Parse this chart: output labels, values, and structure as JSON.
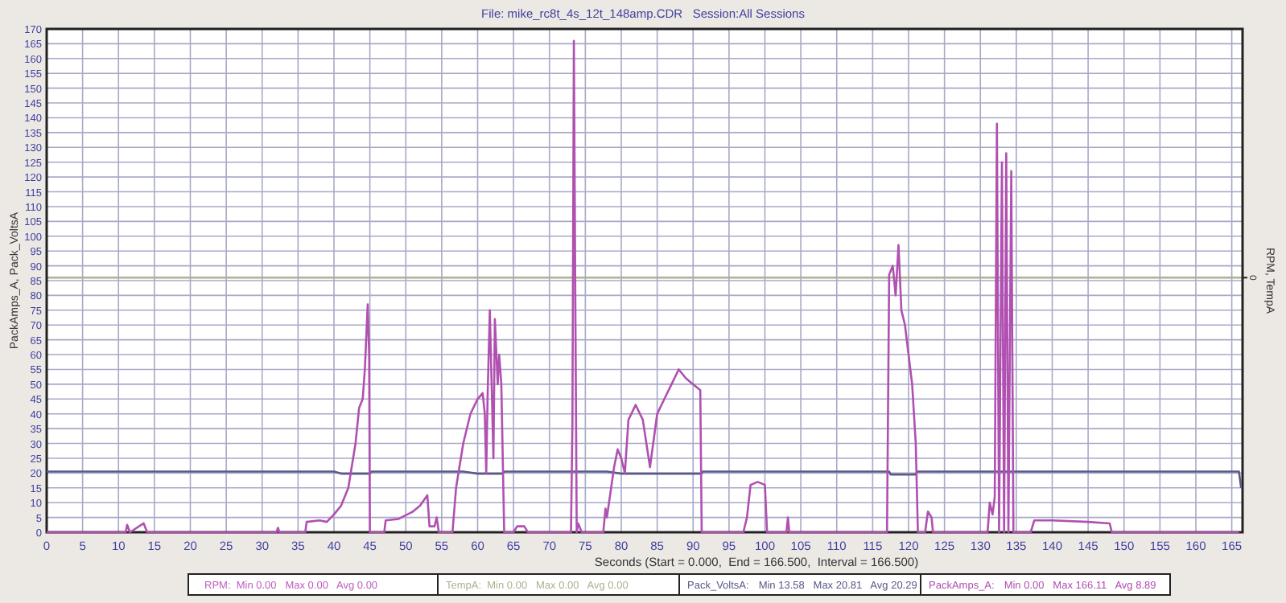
{
  "chart_data": {
    "type": "line",
    "title": "File: mike_rc8t_4s_12t_148amp.CDR   Session:All Sessions",
    "xlabel": "Seconds (Start = 0.000,  End = 166.500,  Interval = 166.500)",
    "ylabel": "PackAmps_A, Pack_VoltsA",
    "y2label": "RPM, TempA",
    "xlim": [
      0,
      166.5
    ],
    "xticks": [
      0,
      5,
      10,
      15,
      20,
      25,
      30,
      35,
      40,
      45,
      50,
      55,
      60,
      65,
      70,
      75,
      80,
      85,
      90,
      95,
      100,
      105,
      110,
      115,
      120,
      125,
      130,
      135,
      140,
      145,
      150,
      155,
      160,
      165
    ],
    "ylim": [
      0,
      170
    ],
    "yticks": [
      0,
      5,
      10,
      15,
      20,
      25,
      30,
      35,
      40,
      45,
      50,
      55,
      60,
      65,
      70,
      75,
      80,
      85,
      90,
      95,
      100,
      105,
      110,
      115,
      120,
      125,
      130,
      135,
      140,
      145,
      150,
      155,
      160,
      165,
      170
    ],
    "grid": true,
    "legend": "bottom",
    "ref_lines": [
      {
        "axis": "y",
        "value": 86,
        "color": "#b0b090"
      }
    ],
    "annotations": [
      "RPM:  Min 0.00   Max 0.00   Avg 0.00",
      "TempA:  Min 0.00   Max 0.00   Avg 0.00",
      "Min 13.58   Max 20.81   Avg 20.29",
      "Min 0.00   Max 166.11   Avg 8.89",
      "0"
    ],
    "series": [
      {
        "name": "Pack_VoltsA:",
        "color": "#5a5a8a",
        "x": [
          0,
          40,
          41,
          45,
          45.2,
          58,
          60,
          63.5,
          63.7,
          78,
          80,
          91.2,
          91.3,
          117.3,
          117.5,
          121,
          121.2,
          166,
          166.3
        ],
        "values": [
          20.5,
          20.5,
          19.8,
          19.8,
          20.5,
          20.5,
          19.8,
          19.8,
          20.5,
          20.5,
          19.8,
          19.8,
          20.5,
          20.5,
          19.5,
          19.5,
          20.5,
          20.5,
          15
        ]
      },
      {
        "name": "PackAmps_A:",
        "color": "#b050b0",
        "x": [
          0,
          11,
          11.2,
          11.6,
          13.5,
          14,
          32,
          32.2,
          32.4,
          36,
          36.2,
          38,
          39,
          40,
          41,
          42,
          43,
          43.5,
          44,
          44.3,
          44.7,
          44.9,
          45,
          47,
          47.2,
          49,
          51,
          52,
          53,
          53.3,
          54,
          54.3,
          54.6,
          56.5,
          57,
          58,
          59,
          60,
          60.7,
          61,
          61.2,
          61.4,
          61.7,
          62,
          62.2,
          62.4,
          62.8,
          63,
          63.3,
          63.5,
          63.7,
          65,
          65.5,
          66.5,
          67,
          73,
          73.2,
          73.4,
          73.6,
          73.8,
          74,
          74.5,
          77.5,
          77.8,
          78,
          79,
          79.5,
          80,
          80.5,
          81,
          82,
          83,
          84,
          85,
          86,
          87,
          88,
          89,
          90,
          91,
          91.2,
          97,
          97.5,
          98,
          99,
          100,
          100.3,
          103,
          103.2,
          103.4,
          117,
          117.3,
          117.8,
          118.2,
          118.6,
          119,
          119.5,
          120,
          120.5,
          121,
          121.3,
          122.3,
          122.7,
          123.2,
          123.4,
          131,
          131.3,
          131.7,
          132,
          132.3,
          132.6,
          133,
          133.3,
          133.6,
          133.9,
          134.3,
          134.6,
          137,
          137.5,
          140,
          145,
          148,
          148.3,
          166
        ],
        "values": [
          0,
          0,
          2.5,
          0,
          3,
          0,
          0,
          1.5,
          0,
          0,
          3.5,
          4,
          3.5,
          6,
          9,
          15,
          30,
          42,
          45,
          55,
          77,
          60,
          0,
          0,
          4,
          4.5,
          7,
          9,
          12.5,
          2,
          2,
          5,
          0,
          0,
          15,
          30,
          40,
          45,
          47,
          40,
          20,
          47,
          75,
          45,
          25,
          72,
          50,
          60,
          50,
          25,
          0,
          0,
          2,
          2,
          0,
          0,
          37,
          166,
          80,
          0,
          3,
          0,
          0,
          8,
          5,
          22,
          28,
          25,
          20,
          38,
          43,
          38,
          22,
          40,
          45,
          50,
          55,
          52,
          50,
          48,
          0,
          0,
          5,
          16,
          17,
          16,
          0,
          0,
          5,
          0,
          0,
          87,
          90,
          80,
          97,
          75,
          70,
          60,
          50,
          30,
          0,
          0,
          7,
          5,
          0,
          0,
          10,
          6,
          12,
          138,
          0,
          125,
          0,
          128,
          0,
          122,
          0,
          0,
          4,
          4,
          3.5,
          3,
          0,
          0
        ]
      }
    ]
  }
}
